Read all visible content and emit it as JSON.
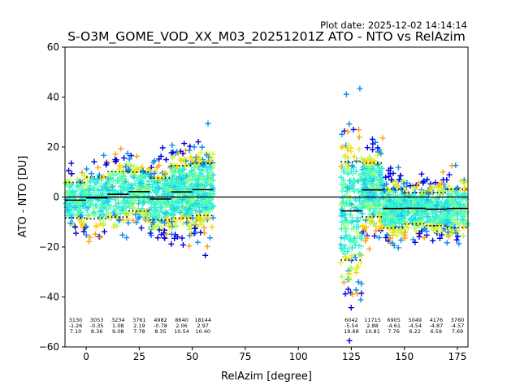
{
  "chart_data": {
    "type": "scatter",
    "title": "S-O3M_GOME_VOD_XX_M03_20251201Z ATO - NTO vs RelAzim",
    "plot_date": "Plot date: 2025-12-02 14:14:14",
    "xlabel": "RelAzim [degree]",
    "ylabel": "ATO - NTO [DU]",
    "xlim": [
      -10,
      180
    ],
    "ylim": [
      -60,
      60
    ],
    "xticks": [
      0,
      25,
      50,
      75,
      100,
      125,
      150,
      175
    ],
    "yticks": [
      -60,
      -40,
      -20,
      0,
      20,
      40,
      60
    ],
    "xtick_labels": [
      "0",
      "25",
      "50",
      "75",
      "100",
      "125",
      "150",
      "175"
    ],
    "ytick_labels": [
      "−60",
      "−40",
      "−20",
      "0",
      "20",
      "40",
      "60"
    ],
    "grid": false,
    "colors": {
      "palette": [
        "#0000dd",
        "#0a8cf0",
        "#18c8f0",
        "#2ef0d8",
        "#58ffb8",
        "#a8ff60",
        "#e0f020",
        "#ffd000",
        "#ffa010"
      ]
    },
    "bins": [
      {
        "x": [
          -10,
          0
        ],
        "count": "3130",
        "mean": "-1.26",
        "std": "7.10"
      },
      {
        "x": [
          0,
          10
        ],
        "count": "3053",
        "mean": "-0.35",
        "std": "8.36"
      },
      {
        "x": [
          10,
          20
        ],
        "count": "3234",
        "mean": "1.08",
        "std": "9.08"
      },
      {
        "x": [
          20,
          30
        ],
        "count": "3761",
        "mean": "2.19",
        "std": "7.78"
      },
      {
        "x": [
          30,
          40
        ],
        "count": "4982",
        "mean": "-0.78",
        "std": "8.35"
      },
      {
        "x": [
          40,
          50
        ],
        "count": "8640",
        "mean": "2.06",
        "std": "10.54"
      },
      {
        "x": [
          50,
          60
        ],
        "count": "18144",
        "mean": "2.97",
        "std": "10.40"
      },
      {
        "x": [
          120,
          130
        ],
        "count": "6042",
        "mean": "-5.54",
        "std": "19.68"
      },
      {
        "x": [
          130,
          140
        ],
        "count": "11715",
        "mean": "2.88",
        "std": "10.81"
      },
      {
        "x": [
          140,
          150
        ],
        "count": "6905",
        "mean": "-4.61",
        "std": "7.76"
      },
      {
        "x": [
          150,
          160
        ],
        "count": "5049",
        "mean": "-4.54",
        "std": "6.22"
      },
      {
        "x": [
          160,
          170
        ],
        "count": "4176",
        "mean": "-4.87",
        "std": "6.59"
      },
      {
        "x": [
          170,
          180
        ],
        "count": "3780",
        "mean": "-4.57",
        "std": "7.69"
      }
    ]
  }
}
